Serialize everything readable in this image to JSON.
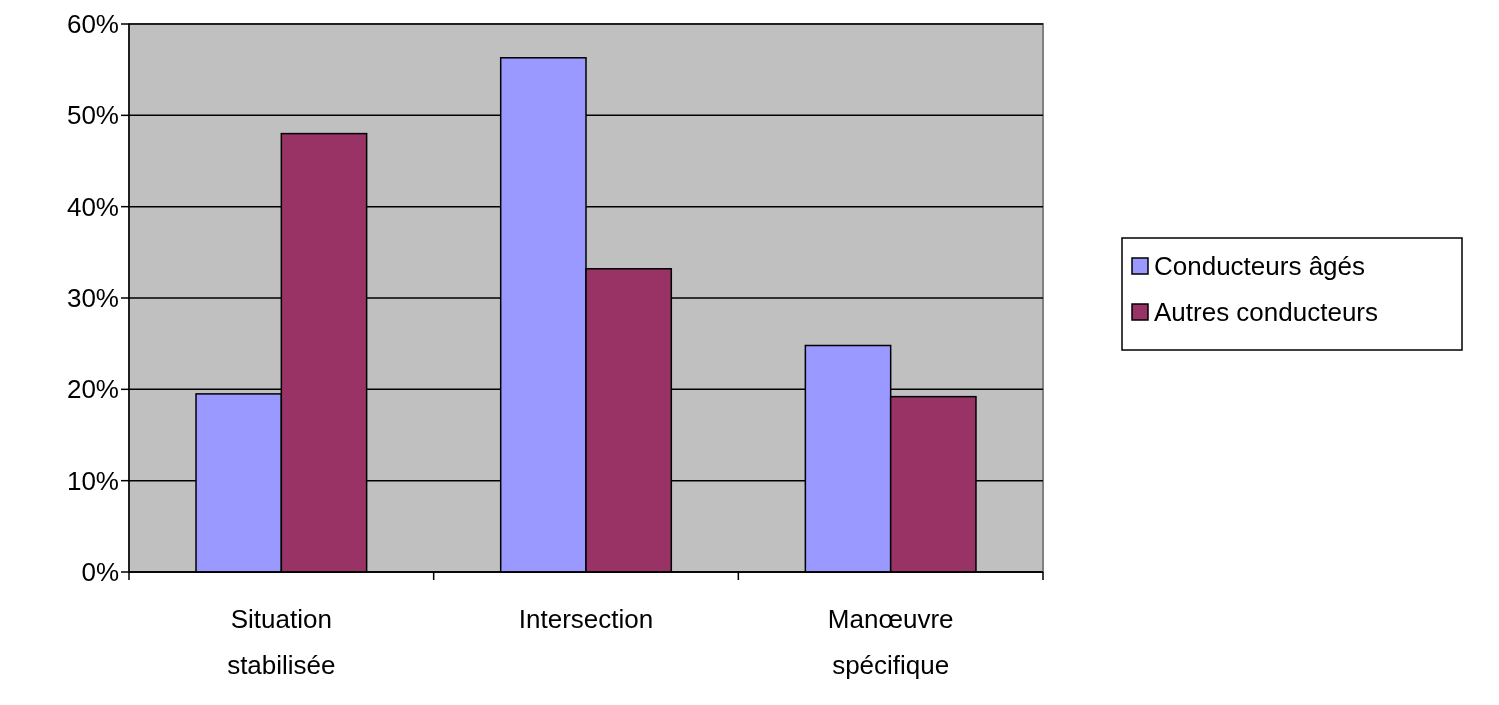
{
  "chart_data": {
    "type": "bar",
    "categories": [
      "Situation stabilisée",
      "Intersection",
      "Manœuvre spécifique"
    ],
    "series": [
      {
        "name": "Conducteurs âgés",
        "color": "#9999ff",
        "values": [
          19.5,
          56.3,
          24.8
        ]
      },
      {
        "name": "Autres conducteurs",
        "color": "#993366",
        "values": [
          48,
          33.2,
          19.2
        ]
      }
    ],
    "ylim": [
      0,
      60
    ],
    "yticks": [
      {
        "value": 0,
        "label": "0%"
      },
      {
        "value": 10,
        "label": "10%"
      },
      {
        "value": 20,
        "label": "20%"
      },
      {
        "value": 30,
        "label": "30%"
      },
      {
        "value": 40,
        "label": "40%"
      },
      {
        "value": 50,
        "label": "50%"
      },
      {
        "value": 60,
        "label": "60%"
      }
    ],
    "grid": "y",
    "legend": "right"
  }
}
